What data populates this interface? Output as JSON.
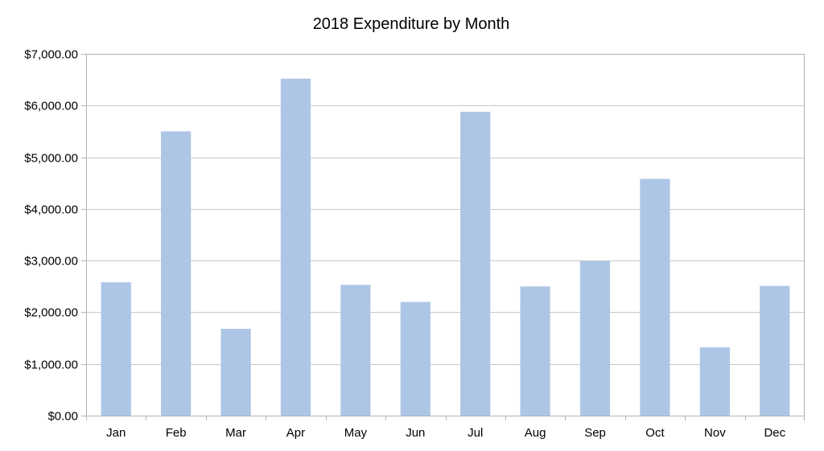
{
  "chart_data": {
    "type": "bar",
    "title": "2018 Expenditure by Month",
    "xlabel": "",
    "ylabel": "",
    "categories": [
      "Jan",
      "Feb",
      "Mar",
      "Apr",
      "May",
      "Jun",
      "Jul",
      "Aug",
      "Sep",
      "Oct",
      "Nov",
      "Dec"
    ],
    "values": [
      2580,
      5500,
      1680,
      6520,
      2530,
      2200,
      5880,
      2500,
      2990,
      4580,
      1320,
      2510
    ],
    "ylim": [
      0,
      7000
    ],
    "yticks": [
      0,
      1000,
      2000,
      3000,
      4000,
      5000,
      6000,
      7000
    ],
    "ytick_labels": [
      "$0.00",
      "$1,000.00",
      "$2,000.00",
      "$3,000.00",
      "$4,000.00",
      "$5,000.00",
      "$6,000.00",
      "$7,000.00"
    ],
    "grid": true,
    "legend": "none",
    "bar_color": "#adc6e6"
  }
}
